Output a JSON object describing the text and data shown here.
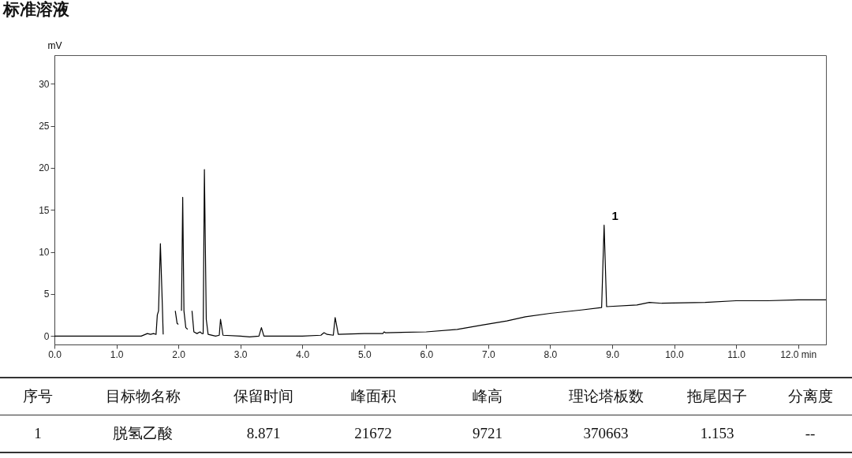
{
  "chart_data": [
    {
      "type": "line",
      "title": "标准溶液",
      "ylabel": "mV",
      "x": [
        0,
        1.4,
        1.5,
        1.55,
        1.6,
        1.64,
        1.66,
        1.68,
        1.71,
        1.74,
        1.755,
        1.76,
        1.93,
        1.95,
        1.98,
        2.0,
        2.01,
        2.04,
        2.05,
        2.07,
        2.09,
        2.12,
        2.15,
        2.16,
        2.19,
        2.22,
        2.25,
        2.3,
        2.35,
        2.38,
        2.4,
        2.42,
        2.45,
        2.48,
        2.6,
        2.66,
        2.68,
        2.72,
        3.0,
        3.15,
        3.3,
        3.34,
        3.38,
        4.0,
        4.3,
        4.35,
        4.4,
        4.5,
        4.53,
        4.58,
        5.0,
        5.3,
        5.32,
        5.34,
        6.0,
        6.5,
        6.9,
        7.3,
        7.6,
        8.0,
        8.5,
        8.83,
        8.87,
        8.91,
        9.4,
        9.6,
        9.8,
        10.5,
        11.0,
        11.5,
        12.0,
        12.45
      ],
      "series": [
        {
          "color": "#000000",
          "values": [
            0,
            0,
            0.3,
            0.2,
            0.3,
            0.2,
            2.5,
            3,
            11,
            4,
            0.2,
            null,
            null,
            3,
            1.5,
            1.4,
            null,
            null,
            3,
            16.5,
            3,
            1,
            0.8,
            null,
            null,
            3,
            0.5,
            0.3,
            0.5,
            0.3,
            0.3,
            19.8,
            2,
            0.2,
            0,
            0.1,
            2,
            0.1,
            0,
            -0.1,
            0,
            1,
            0,
            0,
            0.1,
            0.4,
            0.2,
            0.1,
            2.2,
            0.2,
            0.3,
            0.3,
            0.5,
            0.4,
            0.5,
            0.8,
            1.3,
            1.8,
            2.3,
            2.7,
            3.1,
            3.4,
            13.2,
            3.5,
            3.7,
            4.0,
            3.9,
            4.0,
            4.2,
            4.2,
            4.3,
            4.3
          ]
        }
      ],
      "xlim": [
        0,
        12.45
      ],
      "ylim": [
        -1,
        33.4
      ],
      "xticks": [
        {
          "value": 0,
          "label": "0.0"
        },
        {
          "value": 1,
          "label": "1.0"
        },
        {
          "value": 2,
          "label": "2.0"
        },
        {
          "value": 3,
          "label": "3.0"
        },
        {
          "value": 4,
          "label": "4.0"
        },
        {
          "value": 5,
          "label": "5.0"
        },
        {
          "value": 6,
          "label": "6.0"
        },
        {
          "value": 7,
          "label": "7.0"
        },
        {
          "value": 8,
          "label": "8.0"
        },
        {
          "value": 9,
          "label": "9.0"
        },
        {
          "value": 10,
          "label": "10.0"
        },
        {
          "value": 11,
          "label": "11.0"
        },
        {
          "value": 12,
          "label": "12.0 min"
        }
      ],
      "yticks": [
        0,
        5,
        10,
        15,
        20,
        25,
        30
      ],
      "annotations": [
        {
          "text": "1",
          "x": 8.87,
          "y": 13.2
        }
      ]
    },
    {
      "type": "other",
      "annotations": [
        "序号",
        "目标物名称",
        "保留时间",
        "峰面积",
        "峰高",
        "理论塔板数",
        "拖尾因子",
        "分离度",
        "1",
        "脱氢乙酸",
        "8.871",
        "21672",
        "9721",
        "370663",
        "1.153",
        "--"
      ]
    }
  ]
}
